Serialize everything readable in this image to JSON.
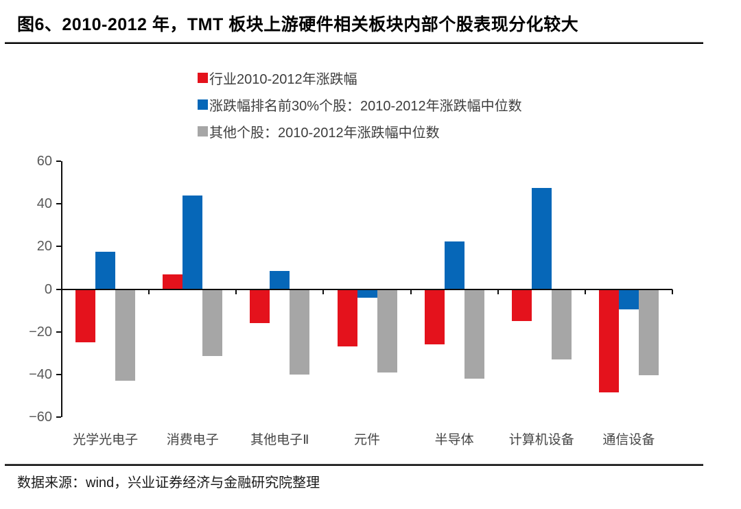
{
  "header": {
    "title": "图6、2010-2012 年，TMT 板块上游硬件相关板块内部个股表现分化较大"
  },
  "footer": {
    "source": "数据来源：wind，兴业证券经济与金融研究院整理"
  },
  "colors": {
    "red": "#e4121c",
    "blue": "#0667b8",
    "gray": "#a6a6a6",
    "axis": "#0d0d0d",
    "tick_label": "#595959",
    "category_label": "#454545"
  },
  "chart_data": {
    "type": "bar",
    "title": "图6、2010-2012 年，TMT 板块上游硬件相关板块内部个股表现分化较大",
    "categories": [
      "光学光电子",
      "消费电子",
      "其他电子Ⅱ",
      "元件",
      "半导体",
      "计算机设备",
      "通信设备"
    ],
    "series": [
      {
        "name": "行业2010-2012年涨跌幅",
        "color_key": "red",
        "values": [
          -25,
          7,
          -16,
          -27,
          -26,
          -15,
          -48.5
        ]
      },
      {
        "name": "涨跌幅排名前30%个股：2010-2012年涨跌幅中位数",
        "color_key": "blue",
        "values": [
          17.5,
          44,
          8.5,
          -4,
          22.5,
          47.5,
          -9.5
        ]
      },
      {
        "name": "其他个股：2010-2012年涨跌幅中位数",
        "color_key": "gray",
        "values": [
          -43,
          -31.5,
          -40,
          -39,
          -42,
          -33,
          -40.5
        ]
      }
    ],
    "xlabel": "",
    "ylabel": "",
    "ylim": [
      -60,
      60
    ],
    "ytick_step": 20,
    "ytick_labels": [
      "60",
      "40",
      "20",
      "0",
      "−20",
      "−40",
      "−60"
    ],
    "legend_position": "top-left",
    "grid": false
  }
}
